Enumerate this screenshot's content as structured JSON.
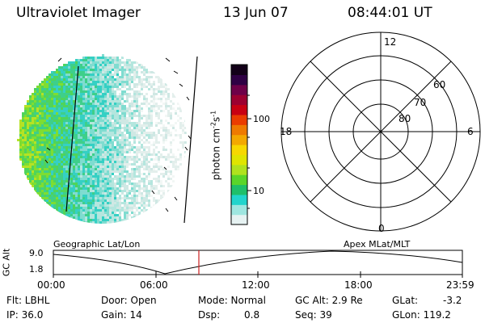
{
  "header": {
    "instrument": "Ultraviolet Imager",
    "date": "13 Jun 07",
    "time": "08:44:01 UT"
  },
  "colorbar": {
    "unit_base": "photon cm",
    "unit_exp1": "-2",
    "unit_mid": "s",
    "unit_exp2": "-1",
    "tick_100": "100",
    "tick_10": "10",
    "colors": [
      "#e6f2f2",
      "#9ee6e0",
      "#22d4cc",
      "#1fbf6a",
      "#5ad52a",
      "#b0e21e",
      "#e0e500",
      "#f7d800",
      "#f3a800",
      "#ee7a00",
      "#ea3c00",
      "#c80012",
      "#9c0030",
      "#6e0048",
      "#2f0044",
      "#120018"
    ]
  },
  "polar": {
    "label_12": "12",
    "label_18": "18",
    "label_6": "6",
    "label_0": "0",
    "label_60": "60",
    "label_70": "70",
    "label_80": "80"
  },
  "altitude_plot": {
    "ylabel": "GC Alt",
    "y_max": "9.0",
    "y_min": "1.8",
    "left_title": "Geographic Lat/Lon",
    "right_title": "Apex MLat/MLT",
    "time_ticks": [
      "00:00",
      "06:00",
      "12:00",
      "18:00",
      "23:59"
    ],
    "marker_time": "08:44",
    "marker_color": "#cc2020"
  },
  "info": {
    "flt": "Flt: LBHL",
    "ip": "IP: 36.0",
    "door": "Door: Open",
    "gain": "Gain: 14",
    "mode": "Mode: Normal",
    "dsp_label": "Dsp:",
    "dsp_value": "0.8",
    "gc_alt": "GC Alt: 2.9 Re",
    "seq": "Seq: 39",
    "glat_label": "GLat:",
    "glat_value": "-3.2",
    "glon": "GLon: 119.2"
  }
}
